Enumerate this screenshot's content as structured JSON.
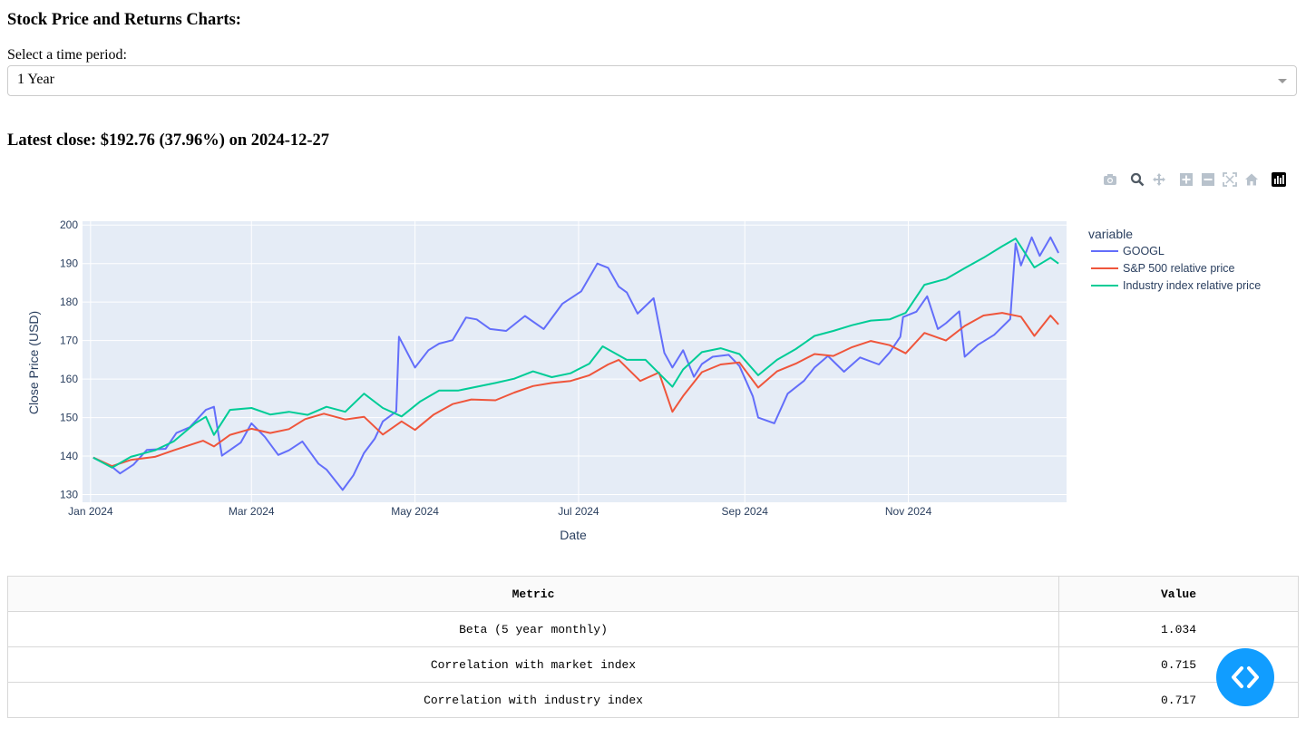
{
  "header": {
    "title": "Stock Price and Returns Charts:"
  },
  "period_select": {
    "label": "Select a time period:",
    "value": "1 Year"
  },
  "latest": {
    "text": "Latest close: $192.76 (37.96%) on 2024-12-27"
  },
  "modebar": [
    "camera-icon",
    "zoom-icon",
    "pan-icon",
    "zoom-in-icon",
    "zoom-out-icon",
    "autoscale-icon",
    "reset-axes-icon",
    "plotly-logo-icon"
  ],
  "chart_data": {
    "type": "line",
    "xlabel": "Date",
    "ylabel": "Close Price (USD)",
    "ylim": [
      128,
      201
    ],
    "xlim": [
      "2023-12-29",
      "2024-12-30"
    ],
    "x_ticks": [
      {
        "date": "2024-01-01",
        "label": "Jan 2024"
      },
      {
        "date": "2024-03-01",
        "label": "Mar 2024"
      },
      {
        "date": "2024-05-01",
        "label": "May 2024"
      },
      {
        "date": "2024-07-01",
        "label": "Jul 2024"
      },
      {
        "date": "2024-09-01",
        "label": "Sep 2024"
      },
      {
        "date": "2024-11-01",
        "label": "Nov 2024"
      }
    ],
    "y_ticks": [
      130,
      140,
      150,
      160,
      170,
      180,
      190,
      200
    ],
    "grid": true,
    "legend": {
      "title": "variable",
      "position": "right"
    },
    "series": [
      {
        "name": "GOOGL",
        "color": "#636efa",
        "points": [
          [
            "2024-01-02",
            139.6
          ],
          [
            "2024-01-09",
            137.2
          ],
          [
            "2024-01-12",
            135.5
          ],
          [
            "2024-01-17",
            137.8
          ],
          [
            "2024-01-22",
            141.6
          ],
          [
            "2024-01-29",
            141.9
          ],
          [
            "2024-02-02",
            146.0
          ],
          [
            "2024-02-07",
            147.5
          ],
          [
            "2024-02-13",
            152.0
          ],
          [
            "2024-02-16",
            152.8
          ],
          [
            "2024-02-19",
            140.1
          ],
          [
            "2024-02-26",
            143.5
          ],
          [
            "2024-03-01",
            148.5
          ],
          [
            "2024-03-06",
            145.0
          ],
          [
            "2024-03-11",
            140.3
          ],
          [
            "2024-03-15",
            141.5
          ],
          [
            "2024-03-20",
            143.8
          ],
          [
            "2024-03-26",
            138.0
          ],
          [
            "2024-03-29",
            136.5
          ],
          [
            "2024-04-04",
            131.2
          ],
          [
            "2024-04-08",
            135.0
          ],
          [
            "2024-04-12",
            140.8
          ],
          [
            "2024-04-16",
            144.5
          ],
          [
            "2024-04-19",
            149.0
          ],
          [
            "2024-04-24",
            151.6
          ],
          [
            "2024-04-25",
            171.0
          ],
          [
            "2024-05-01",
            163.0
          ],
          [
            "2024-05-06",
            167.5
          ],
          [
            "2024-05-10",
            169.2
          ],
          [
            "2024-05-15",
            170.1
          ],
          [
            "2024-05-20",
            176.0
          ],
          [
            "2024-05-24",
            175.5
          ],
          [
            "2024-05-29",
            173.0
          ],
          [
            "2024-06-04",
            172.5
          ],
          [
            "2024-06-11",
            176.4
          ],
          [
            "2024-06-18",
            173.0
          ],
          [
            "2024-06-25",
            179.6
          ],
          [
            "2024-07-02",
            182.8
          ],
          [
            "2024-07-08",
            190.0
          ],
          [
            "2024-07-12",
            188.9
          ],
          [
            "2024-07-16",
            184.0
          ],
          [
            "2024-07-19",
            182.5
          ],
          [
            "2024-07-23",
            177.0
          ],
          [
            "2024-07-29",
            181.0
          ],
          [
            "2024-08-02",
            166.8
          ],
          [
            "2024-08-05",
            163.0
          ],
          [
            "2024-08-09",
            167.5
          ],
          [
            "2024-08-13",
            160.6
          ],
          [
            "2024-08-16",
            163.9
          ],
          [
            "2024-08-20",
            165.8
          ],
          [
            "2024-08-26",
            166.3
          ],
          [
            "2024-08-30",
            163.4
          ],
          [
            "2024-09-04",
            155.5
          ],
          [
            "2024-09-06",
            150.0
          ],
          [
            "2024-09-12",
            148.5
          ],
          [
            "2024-09-17",
            156.2
          ],
          [
            "2024-09-23",
            159.5
          ],
          [
            "2024-09-27",
            163.0
          ],
          [
            "2024-10-02",
            166.0
          ],
          [
            "2024-10-08",
            161.9
          ],
          [
            "2024-10-14",
            165.6
          ],
          [
            "2024-10-21",
            163.8
          ],
          [
            "2024-10-25",
            166.9
          ],
          [
            "2024-10-29",
            171.0
          ],
          [
            "2024-10-30",
            176.1
          ],
          [
            "2024-11-04",
            177.5
          ],
          [
            "2024-11-08",
            181.5
          ],
          [
            "2024-11-12",
            173.0
          ],
          [
            "2024-11-15",
            174.5
          ],
          [
            "2024-11-20",
            177.6
          ],
          [
            "2024-11-22",
            165.8
          ],
          [
            "2024-11-27",
            168.9
          ],
          [
            "2024-12-03",
            171.5
          ],
          [
            "2024-12-09",
            175.6
          ],
          [
            "2024-12-11",
            195.2
          ],
          [
            "2024-12-13",
            189.5
          ],
          [
            "2024-12-17",
            196.8
          ],
          [
            "2024-12-20",
            192.0
          ],
          [
            "2024-12-24",
            196.8
          ],
          [
            "2024-12-27",
            192.76
          ]
        ]
      },
      {
        "name": "S&P 500 relative price",
        "color": "#ef553b",
        "points": [
          [
            "2024-01-02",
            139.6
          ],
          [
            "2024-01-09",
            137.4
          ],
          [
            "2024-01-16",
            139.0
          ],
          [
            "2024-01-25",
            139.8
          ],
          [
            "2024-02-01",
            141.5
          ],
          [
            "2024-02-12",
            144.0
          ],
          [
            "2024-02-16",
            142.5
          ],
          [
            "2024-02-22",
            145.5
          ],
          [
            "2024-03-01",
            147.1
          ],
          [
            "2024-03-08",
            146.0
          ],
          [
            "2024-03-15",
            147.0
          ],
          [
            "2024-03-21",
            149.6
          ],
          [
            "2024-03-28",
            151.0
          ],
          [
            "2024-04-05",
            149.5
          ],
          [
            "2024-04-12",
            150.2
          ],
          [
            "2024-04-19",
            145.6
          ],
          [
            "2024-04-26",
            149.0
          ],
          [
            "2024-05-01",
            146.8
          ],
          [
            "2024-05-08",
            150.8
          ],
          [
            "2024-05-15",
            153.5
          ],
          [
            "2024-05-22",
            154.7
          ],
          [
            "2024-05-31",
            154.5
          ],
          [
            "2024-06-07",
            156.5
          ],
          [
            "2024-06-14",
            158.2
          ],
          [
            "2024-06-21",
            159.0
          ],
          [
            "2024-06-28",
            159.5
          ],
          [
            "2024-07-05",
            161.0
          ],
          [
            "2024-07-12",
            163.8
          ],
          [
            "2024-07-16",
            165.0
          ],
          [
            "2024-07-24",
            159.5
          ],
          [
            "2024-07-31",
            161.7
          ],
          [
            "2024-08-05",
            151.5
          ],
          [
            "2024-08-09",
            155.6
          ],
          [
            "2024-08-16",
            161.8
          ],
          [
            "2024-08-23",
            163.8
          ],
          [
            "2024-08-30",
            164.3
          ],
          [
            "2024-09-06",
            157.8
          ],
          [
            "2024-09-13",
            162.0
          ],
          [
            "2024-09-20",
            164.0
          ],
          [
            "2024-09-27",
            166.5
          ],
          [
            "2024-10-04",
            166.0
          ],
          [
            "2024-10-11",
            168.3
          ],
          [
            "2024-10-18",
            169.9
          ],
          [
            "2024-10-25",
            168.8
          ],
          [
            "2024-10-31",
            166.7
          ],
          [
            "2024-11-07",
            172.0
          ],
          [
            "2024-11-15",
            170.0
          ],
          [
            "2024-11-22",
            173.8
          ],
          [
            "2024-11-29",
            176.5
          ],
          [
            "2024-12-06",
            177.2
          ],
          [
            "2024-12-13",
            176.2
          ],
          [
            "2024-12-18",
            171.2
          ],
          [
            "2024-12-24",
            176.5
          ],
          [
            "2024-12-27",
            174.2
          ]
        ]
      },
      {
        "name": "Industry index relative price",
        "color": "#00cc96",
        "points": [
          [
            "2024-01-02",
            139.6
          ],
          [
            "2024-01-09",
            137.0
          ],
          [
            "2024-01-16",
            139.8
          ],
          [
            "2024-01-25",
            141.5
          ],
          [
            "2024-02-01",
            143.8
          ],
          [
            "2024-02-09",
            148.5
          ],
          [
            "2024-02-13",
            150.2
          ],
          [
            "2024-02-16",
            145.5
          ],
          [
            "2024-02-22",
            152.0
          ],
          [
            "2024-03-01",
            152.5
          ],
          [
            "2024-03-08",
            150.8
          ],
          [
            "2024-03-15",
            151.5
          ],
          [
            "2024-03-22",
            150.7
          ],
          [
            "2024-03-29",
            152.8
          ],
          [
            "2024-04-05",
            151.5
          ],
          [
            "2024-04-12",
            156.2
          ],
          [
            "2024-04-19",
            152.5
          ],
          [
            "2024-04-26",
            150.3
          ],
          [
            "2024-05-03",
            154.2
          ],
          [
            "2024-05-10",
            157.0
          ],
          [
            "2024-05-17",
            157.0
          ],
          [
            "2024-05-31",
            159.0
          ],
          [
            "2024-06-07",
            160.1
          ],
          [
            "2024-06-14",
            162.0
          ],
          [
            "2024-06-21",
            160.5
          ],
          [
            "2024-06-28",
            161.5
          ],
          [
            "2024-07-05",
            164.0
          ],
          [
            "2024-07-10",
            168.5
          ],
          [
            "2024-07-19",
            165.0
          ],
          [
            "2024-07-26",
            165.0
          ],
          [
            "2024-08-05",
            158.0
          ],
          [
            "2024-08-09",
            162.5
          ],
          [
            "2024-08-16",
            167.0
          ],
          [
            "2024-08-23",
            168.0
          ],
          [
            "2024-08-30",
            166.5
          ],
          [
            "2024-09-06",
            161.0
          ],
          [
            "2024-09-13",
            165.0
          ],
          [
            "2024-09-20",
            167.8
          ],
          [
            "2024-09-27",
            171.2
          ],
          [
            "2024-10-04",
            172.5
          ],
          [
            "2024-10-11",
            174.0
          ],
          [
            "2024-10-18",
            175.2
          ],
          [
            "2024-10-25",
            175.5
          ],
          [
            "2024-10-31",
            177.2
          ],
          [
            "2024-11-07",
            184.5
          ],
          [
            "2024-11-15",
            186.0
          ],
          [
            "2024-11-22",
            188.8
          ],
          [
            "2024-11-29",
            191.5
          ],
          [
            "2024-12-06",
            194.5
          ],
          [
            "2024-12-11",
            196.5
          ],
          [
            "2024-12-18",
            189.0
          ],
          [
            "2024-12-24",
            191.5
          ],
          [
            "2024-12-27",
            190.0
          ]
        ]
      }
    ]
  },
  "metrics_table": {
    "columns": [
      "Metric",
      "Value"
    ],
    "rows": [
      [
        "Beta (5 year monthly)",
        "1.034"
      ],
      [
        "Correlation with market index",
        "0.715"
      ],
      [
        "Correlation with industry index",
        "0.717"
      ]
    ]
  },
  "fab": {
    "icon": "code-brackets-icon"
  }
}
